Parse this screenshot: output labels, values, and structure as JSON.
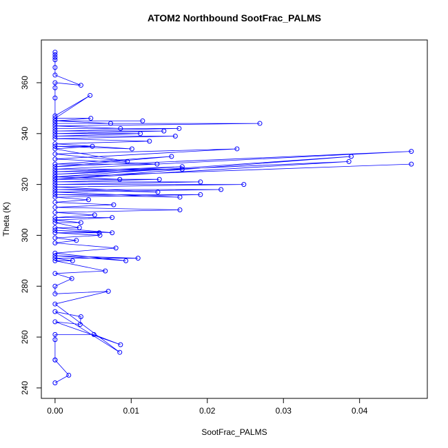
{
  "chart_data": {
    "type": "line",
    "title": "ATOM2 Northbound SootFrac_PALMS",
    "x_label": "SootFrac_PALMS",
    "y_label": "Theta (K)",
    "color": "#0000ff",
    "markers": true,
    "xlim": [
      -0.0018,
      0.0489
    ],
    "ylim": [
      235.9,
      376.8
    ],
    "xticks": [
      {
        "value": 0,
        "label": "0.00"
      },
      {
        "value": 0.01,
        "label": "0.01"
      },
      {
        "value": 0.02,
        "label": "0.02"
      },
      {
        "value": 0.03,
        "label": "0.03"
      },
      {
        "value": 0.04,
        "label": "0.04"
      }
    ],
    "yticks": [
      240,
      260,
      280,
      300,
      320,
      340,
      360
    ],
    "x": [
      0,
      0.0018,
      0,
      0,
      0,
      0,
      0.0051,
      0.0086,
      0,
      0.0033,
      0.0034,
      0,
      0.0085,
      0,
      0.007,
      0,
      0,
      0.0022,
      0,
      0.0066,
      0,
      0.0023,
      0,
      0.0109,
      0,
      0.0093,
      0,
      0.008,
      0,
      0.0028,
      0,
      0.0059,
      0,
      0.0058,
      0,
      0.0075,
      0,
      0.0032,
      0,
      0.0034,
      0,
      0.0075,
      0,
      0.0052,
      0,
      0.0164,
      0,
      0.0077,
      0,
      0.0044,
      0,
      0.0191,
      0,
      0.0164,
      0,
      0.0218,
      0,
      0.0135,
      0,
      0.0248,
      0,
      0.0191,
      0,
      0.0137,
      0,
      0.0085,
      0,
      0.0468,
      0,
      0.0389,
      0,
      0.0386,
      0,
      0.0167,
      0,
      0.0167,
      0,
      0.0468,
      0,
      0.0153,
      0,
      0.0134,
      0,
      0.0239,
      0,
      0.0095,
      0,
      0.0049,
      0,
      0.0101,
      0,
      0.0124,
      0,
      0.0158,
      0,
      0.0112,
      0,
      0.0143,
      0,
      0.0163,
      0,
      0.0086,
      0,
      0.0269,
      0,
      0.0073,
      0,
      0.0115,
      0,
      0.0047,
      0,
      0.0046,
      0,
      0,
      0,
      0,
      0.0034,
      0,
      0,
      0,
      0,
      0,
      0
    ],
    "y": [
      242,
      245,
      251,
      251,
      259,
      261,
      261,
      257,
      266,
      265,
      268,
      270,
      254,
      273,
      278,
      277,
      280,
      283,
      285,
      286,
      290,
      290,
      291,
      291,
      292,
      290,
      293,
      295,
      297,
      298,
      299,
      300,
      301,
      301,
      302,
      301,
      303,
      303,
      305,
      305,
      306,
      307,
      307,
      308,
      309,
      310,
      311,
      312,
      313,
      314,
      315,
      316,
      316,
      315,
      317,
      318,
      318,
      317,
      319,
      320,
      320,
      321,
      321,
      322,
      322,
      322,
      323,
      328,
      323,
      331,
      322,
      329,
      324,
      327,
      325,
      326,
      326,
      333,
      327,
      331,
      328,
      328,
      330,
      334,
      332,
      329,
      334,
      335,
      335,
      334,
      336,
      337,
      338,
      339,
      339,
      340,
      340,
      341,
      341,
      342,
      342,
      342,
      343,
      344,
      344,
      344,
      345,
      345,
      345,
      346,
      346,
      355,
      347,
      354,
      358,
      360,
      359,
      363,
      366,
      369,
      371,
      372,
      370
    ]
  }
}
